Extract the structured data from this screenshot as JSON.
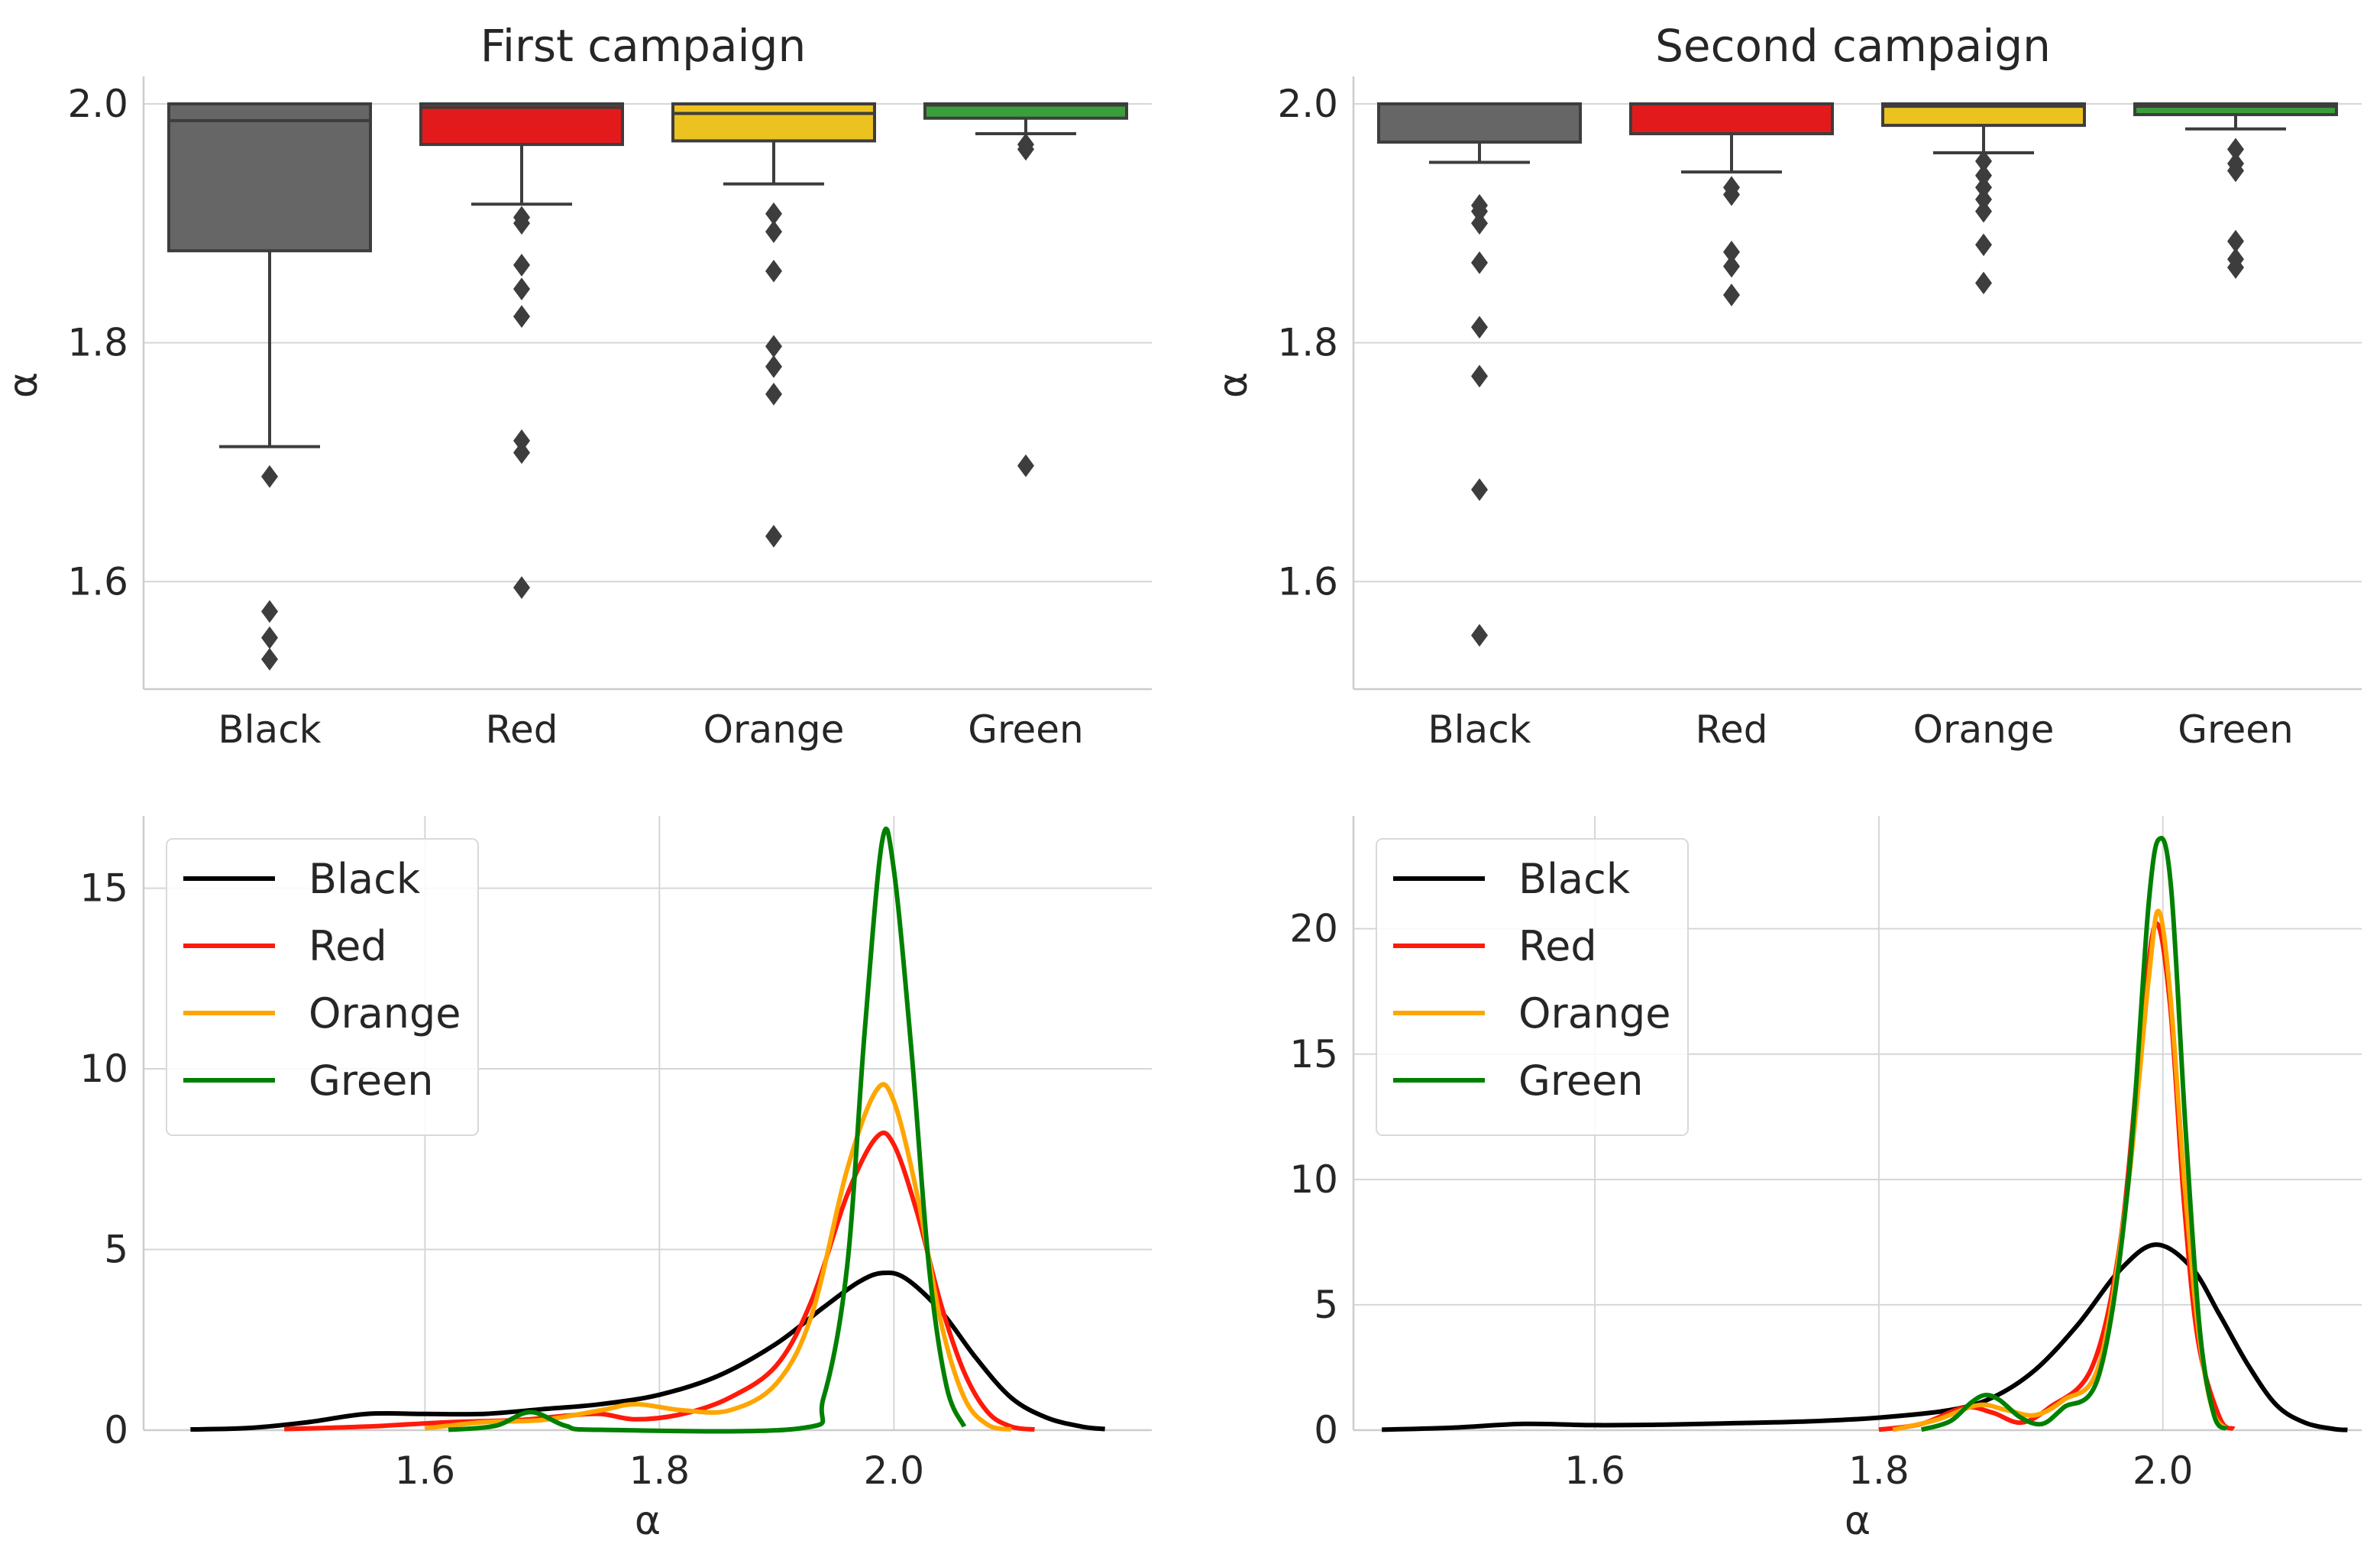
{
  "chart_data": [
    {
      "type": "box",
      "title": "First campaign",
      "ylabel": "α",
      "xlabel": "",
      "ylim": [
        1.51,
        2.023
      ],
      "yticks": [
        1.6,
        1.8,
        2.0
      ],
      "ytick_labels": [
        "1.6",
        "1.8",
        "2.0"
      ],
      "grid": true,
      "categories": [
        "Black",
        "Red",
        "Orange",
        "Green"
      ],
      "colors": [
        "#666666",
        "#e31a1c",
        "#ebc220",
        "#3a9e3a"
      ],
      "boxes": [
        {
          "name": "Black",
          "whisker_low": 1.713,
          "q1": 1.877,
          "median": 1.986,
          "q3": 2.0,
          "whisker_high": 2.0,
          "outliers": [
            1.688,
            1.575,
            1.553,
            1.535
          ]
        },
        {
          "name": "Red",
          "whisker_low": 1.916,
          "q1": 1.966,
          "median": 1.997,
          "q3": 2.0,
          "whisker_high": 2.0,
          "outliers": [
            1.905,
            1.9,
            1.865,
            1.845,
            1.822,
            1.718,
            1.708,
            1.595
          ]
        },
        {
          "name": "Orange",
          "whisker_low": 1.933,
          "q1": 1.969,
          "median": 1.992,
          "q3": 2.0,
          "whisker_high": 2.0,
          "outliers": [
            1.908,
            1.893,
            1.86,
            1.797,
            1.78,
            1.757,
            1.638
          ]
        },
        {
          "name": "Green",
          "whisker_low": 1.975,
          "q1": 1.988,
          "median": 1.999,
          "q3": 2.0,
          "whisker_high": 2.0,
          "outliers": [
            1.966,
            1.962,
            1.697
          ]
        }
      ]
    },
    {
      "type": "box",
      "title": "Second campaign",
      "ylabel": "α",
      "xlabel": "",
      "ylim": [
        1.51,
        2.023
      ],
      "yticks": [
        1.6,
        1.8,
        2.0
      ],
      "ytick_labels": [
        "1.6",
        "1.8",
        "2.0"
      ],
      "grid": true,
      "categories": [
        "Black",
        "Red",
        "Orange",
        "Green"
      ],
      "colors": [
        "#666666",
        "#e31a1c",
        "#ebc220",
        "#3a9e3a"
      ],
      "boxes": [
        {
          "name": "Black",
          "whisker_low": 1.951,
          "q1": 1.968,
          "median": 2.0,
          "q3": 2.0,
          "whisker_high": 2.0,
          "outliers": [
            1.915,
            1.91,
            1.9,
            1.867,
            1.813,
            1.772,
            1.677,
            1.555
          ]
        },
        {
          "name": "Red",
          "whisker_low": 1.943,
          "q1": 1.975,
          "median": 2.0,
          "q3": 2.0,
          "whisker_high": 2.0,
          "outliers": [
            1.93,
            1.924,
            1.876,
            1.864,
            1.84
          ]
        },
        {
          "name": "Orange",
          "whisker_low": 1.959,
          "q1": 1.982,
          "median": 1.998,
          "q3": 2.0,
          "whisker_high": 2.0,
          "outliers": [
            1.952,
            1.94,
            1.93,
            1.92,
            1.91,
            1.882,
            1.85
          ]
        },
        {
          "name": "Green",
          "whisker_low": 1.979,
          "q1": 1.991,
          "median": 1.998,
          "q3": 2.0,
          "whisker_high": 2.0,
          "outliers": [
            1.962,
            1.95,
            1.944,
            1.885,
            1.87,
            1.863
          ]
        }
      ]
    },
    {
      "type": "line",
      "title": "",
      "xlabel": "α",
      "ylabel": "",
      "xlim": [
        1.36,
        2.22
      ],
      "ylim": [
        0,
        17
      ],
      "xticks": [
        1.6,
        1.8,
        2.0
      ],
      "xtick_labels": [
        "1.6",
        "1.8",
        "2.0"
      ],
      "yticks": [
        0,
        5,
        10,
        15
      ],
      "ytick_labels": [
        "0",
        "5",
        "10",
        "15"
      ],
      "grid": true,
      "legend": "top-left",
      "series": [
        {
          "name": "Black",
          "color": "#000000",
          "points": [
            [
              1.4,
              0.02
            ],
            [
              1.45,
              0.06
            ],
            [
              1.5,
              0.22
            ],
            [
              1.55,
              0.45
            ],
            [
              1.6,
              0.45
            ],
            [
              1.65,
              0.45
            ],
            [
              1.7,
              0.58
            ],
            [
              1.75,
              0.72
            ],
            [
              1.8,
              0.98
            ],
            [
              1.85,
              1.5
            ],
            [
              1.9,
              2.4
            ],
            [
              1.94,
              3.4
            ],
            [
              1.97,
              4.1
            ],
            [
              1.99,
              4.35
            ],
            [
              2.01,
              4.2
            ],
            [
              2.04,
              3.3
            ],
            [
              2.07,
              2.0
            ],
            [
              2.1,
              0.9
            ],
            [
              2.13,
              0.35
            ],
            [
              2.16,
              0.1
            ],
            [
              2.18,
              0.03
            ]
          ]
        },
        {
          "name": "Red",
          "color": "#ff1a0a",
          "points": [
            [
              1.48,
              0.03
            ],
            [
              1.55,
              0.1
            ],
            [
              1.62,
              0.22
            ],
            [
              1.68,
              0.28
            ],
            [
              1.72,
              0.4
            ],
            [
              1.75,
              0.45
            ],
            [
              1.78,
              0.3
            ],
            [
              1.82,
              0.45
            ],
            [
              1.86,
              0.9
            ],
            [
              1.9,
              1.8
            ],
            [
              1.93,
              3.6
            ],
            [
              1.96,
              6.5
            ],
            [
              1.985,
              8.1
            ],
            [
              2.0,
              7.9
            ],
            [
              2.02,
              6.0
            ],
            [
              2.04,
              3.5
            ],
            [
              2.06,
              1.6
            ],
            [
              2.08,
              0.5
            ],
            [
              2.1,
              0.1
            ],
            [
              2.12,
              0.02
            ]
          ]
        },
        {
          "name": "Orange",
          "color": "#ffa500",
          "points": [
            [
              1.6,
              0.05
            ],
            [
              1.65,
              0.22
            ],
            [
              1.7,
              0.28
            ],
            [
              1.75,
              0.55
            ],
            [
              1.78,
              0.72
            ],
            [
              1.82,
              0.55
            ],
            [
              1.86,
              0.55
            ],
            [
              1.9,
              1.3
            ],
            [
              1.93,
              3.2
            ],
            [
              1.96,
              7.2
            ],
            [
              1.985,
              9.4
            ],
            [
              2.0,
              9.1
            ],
            [
              2.02,
              6.5
            ],
            [
              2.04,
              3.0
            ],
            [
              2.06,
              0.9
            ],
            [
              2.08,
              0.15
            ],
            [
              2.1,
              0.02
            ]
          ]
        },
        {
          "name": "Green",
          "color": "#008000",
          "points": [
            [
              1.62,
              0.01
            ],
            [
              1.66,
              0.12
            ],
            [
              1.69,
              0.5
            ],
            [
              1.72,
              0.12
            ],
            [
              1.75,
              0.01
            ],
            [
              1.92,
              0.05
            ],
            [
              1.94,
              0.9
            ],
            [
              1.96,
              4.5
            ],
            [
              1.975,
              11.0
            ],
            [
              1.99,
              16.3
            ],
            [
              2.0,
              15.5
            ],
            [
              2.015,
              10.5
            ],
            [
              2.03,
              4.5
            ],
            [
              2.045,
              1.2
            ],
            [
              2.06,
              0.1
            ]
          ]
        }
      ]
    },
    {
      "type": "line",
      "title": "",
      "xlabel": "α",
      "ylabel": "",
      "xlim": [
        1.43,
        2.14
      ],
      "ylim": [
        0,
        24.5
      ],
      "xticks": [
        1.6,
        1.8,
        2.0
      ],
      "xtick_labels": [
        "1.6",
        "1.8",
        "2.0"
      ],
      "yticks": [
        0,
        5,
        10,
        15,
        20
      ],
      "ytick_labels": [
        "0",
        "5",
        "10",
        "15",
        "20"
      ],
      "grid": true,
      "legend": "top-left",
      "series": [
        {
          "name": "Black",
          "color": "#000000",
          "points": [
            [
              1.45,
              0.02
            ],
            [
              1.5,
              0.1
            ],
            [
              1.55,
              0.25
            ],
            [
              1.6,
              0.2
            ],
            [
              1.65,
              0.22
            ],
            [
              1.7,
              0.28
            ],
            [
              1.75,
              0.35
            ],
            [
              1.8,
              0.5
            ],
            [
              1.85,
              0.8
            ],
            [
              1.88,
              1.3
            ],
            [
              1.91,
              2.4
            ],
            [
              1.94,
              4.2
            ],
            [
              1.97,
              6.4
            ],
            [
              1.995,
              7.4
            ],
            [
              2.02,
              6.5
            ],
            [
              2.04,
              4.6
            ],
            [
              2.06,
              2.6
            ],
            [
              2.08,
              1.0
            ],
            [
              2.1,
              0.3
            ],
            [
              2.12,
              0.05
            ],
            [
              2.13,
              0.01
            ]
          ]
        },
        {
          "name": "Red",
          "color": "#ff1a0a",
          "points": [
            [
              1.8,
              0.02
            ],
            [
              1.83,
              0.25
            ],
            [
              1.86,
              0.9
            ],
            [
              1.88,
              0.7
            ],
            [
              1.9,
              0.3
            ],
            [
              1.92,
              0.9
            ],
            [
              1.95,
              2.5
            ],
            [
              1.97,
              7.5
            ],
            [
              1.985,
              16.0
            ],
            [
              1.995,
              20.2
            ],
            [
              2.005,
              17.0
            ],
            [
              2.015,
              9.0
            ],
            [
              2.025,
              3.5
            ],
            [
              2.04,
              0.5
            ],
            [
              2.05,
              0.05
            ]
          ]
        },
        {
          "name": "Orange",
          "color": "#ffa500",
          "points": [
            [
              1.81,
              0.02
            ],
            [
              1.84,
              0.4
            ],
            [
              1.87,
              1.0
            ],
            [
              1.89,
              0.8
            ],
            [
              1.91,
              0.6
            ],
            [
              1.93,
              1.2
            ],
            [
              1.955,
              2.6
            ],
            [
              1.975,
              9.5
            ],
            [
              1.99,
              18.0
            ],
            [
              1.997,
              20.7
            ],
            [
              2.005,
              17.5
            ],
            [
              2.015,
              10.0
            ],
            [
              2.025,
              4.0
            ],
            [
              2.035,
              0.8
            ],
            [
              2.045,
              0.05
            ]
          ]
        },
        {
          "name": "Green",
          "color": "#008000",
          "points": [
            [
              1.83,
              0.02
            ],
            [
              1.85,
              0.35
            ],
            [
              1.865,
              1.1
            ],
            [
              1.875,
              1.4
            ],
            [
              1.885,
              1.2
            ],
            [
              1.9,
              0.5
            ],
            [
              1.915,
              0.25
            ],
            [
              1.93,
              0.9
            ],
            [
              1.955,
              2.2
            ],
            [
              1.975,
              9.5
            ],
            [
              1.99,
              21.0
            ],
            [
              1.998,
              23.6
            ],
            [
              2.006,
              21.5
            ],
            [
              2.016,
              12.0
            ],
            [
              2.026,
              4.0
            ],
            [
              2.036,
              0.6
            ],
            [
              2.045,
              0.05
            ]
          ]
        }
      ]
    }
  ]
}
